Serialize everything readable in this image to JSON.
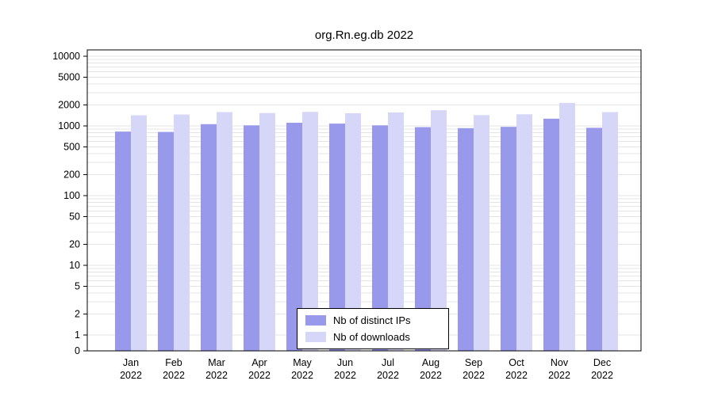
{
  "chart_data": {
    "type": "bar",
    "title": "org.Rn.eg.db 2022",
    "year_label": "2022",
    "categories": [
      "Jan",
      "Feb",
      "Mar",
      "Apr",
      "May",
      "Jun",
      "Jul",
      "Aug",
      "Sep",
      "Oct",
      "Nov",
      "Dec"
    ],
    "series": [
      {
        "name": "Nb of distinct IPs",
        "color": "#9999ec",
        "values": [
          830,
          820,
          1060,
          1020,
          1110,
          1080,
          1020,
          960,
          930,
          970,
          1270,
          940
        ]
      },
      {
        "name": "Nb of downloads",
        "color": "#d6d6f8",
        "values": [
          1420,
          1460,
          1580,
          1530,
          1590,
          1520,
          1560,
          1680,
          1430,
          1470,
          2140,
          1580
        ]
      }
    ],
    "yscale": "log",
    "yticks": [
      0,
      1,
      2,
      5,
      10,
      20,
      50,
      100,
      200,
      500,
      1000,
      2000,
      5000,
      10000
    ],
    "ylim": [
      0,
      10000
    ],
    "grid": true,
    "legend_position": "bottom-center",
    "colors": {
      "grid": "#e4e4e4",
      "axis": "#000000",
      "background": "#ffffff"
    }
  }
}
